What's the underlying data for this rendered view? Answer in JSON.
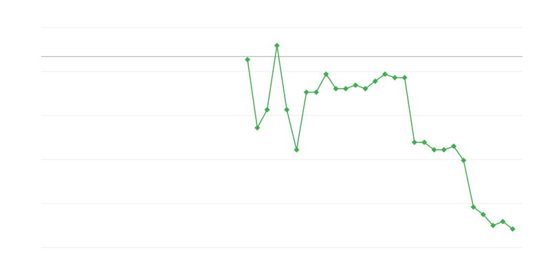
{
  "chart_data": {
    "type": "line",
    "title": "",
    "xlabel": "",
    "ylabel": "",
    "xlim": [
      0,
      49
    ],
    "ylim": [
      0,
      5
    ],
    "grid": true,
    "y_gridlines": [
      0,
      1,
      2,
      3,
      4,
      5
    ],
    "reference_line": 4.34,
    "series": [
      {
        "color": "#3bb04a",
        "marker": "diamond",
        "x": [
          21,
          22,
          23,
          24,
          25,
          26,
          27,
          28,
          29,
          30,
          31,
          32,
          33,
          34,
          35,
          36,
          37,
          38,
          39,
          40,
          41,
          42,
          43,
          44,
          45,
          46,
          47,
          48
        ],
        "values": [
          4.27,
          2.72,
          3.13,
          4.59,
          3.13,
          2.22,
          3.53,
          3.53,
          3.94,
          3.61,
          3.61,
          3.69,
          3.61,
          3.78,
          3.94,
          3.86,
          3.86,
          2.39,
          2.39,
          2.22,
          2.22,
          2.3,
          1.98,
          0.92,
          0.75,
          0.5,
          0.59,
          0.42
        ]
      }
    ],
    "colors": {
      "grid": "#ebebeb",
      "reference": "#aaaaaa"
    }
  }
}
